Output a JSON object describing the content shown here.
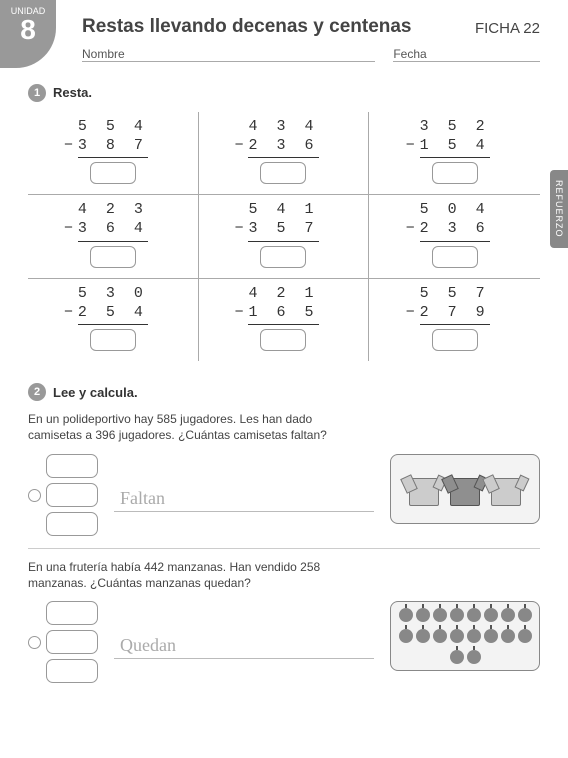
{
  "unit": {
    "label": "UNIDAD",
    "number": "8"
  },
  "title": "Restas llevando decenas y centenas",
  "ficha": "FICHA 22",
  "name_label": "Nombre",
  "date_label": "Fecha",
  "side_tab": "REFUERZO",
  "section1": {
    "number": "1",
    "title": "Resta.",
    "problems": [
      {
        "top": "5 5 4",
        "bottom": "3 8 7"
      },
      {
        "top": "4 3 4",
        "bottom": "2 3 6"
      },
      {
        "top": "3 5 2",
        "bottom": "1 5 4"
      },
      {
        "top": "4 2 3",
        "bottom": "3 6 4"
      },
      {
        "top": "5 4 1",
        "bottom": "3 5 7"
      },
      {
        "top": "5 0 4",
        "bottom": "2 3 6"
      },
      {
        "top": "5 3 0",
        "bottom": "2 5 4"
      },
      {
        "top": "4 2 1",
        "bottom": "1 6 5"
      },
      {
        "top": "5 5 7",
        "bottom": "2 7 9"
      }
    ]
  },
  "section2": {
    "number": "2",
    "title": "Lee y calcula.",
    "problems": [
      {
        "text": "En un polideportivo hay 585 jugadores. Les han dado camisetas a 396 jugadores.  ¿Cuántas camisetas faltan?",
        "answer_hint": "Faltan",
        "illustration": "shirts"
      },
      {
        "text": "En una frutería había 442 manzanas. Han vendido 258 manzanas. ¿Cuántas manzanas quedan?",
        "answer_hint": "Quedan",
        "illustration": "apples"
      }
    ]
  },
  "colors": {
    "badge": "#999999",
    "border": "#aaaaaa",
    "text": "#333333"
  }
}
